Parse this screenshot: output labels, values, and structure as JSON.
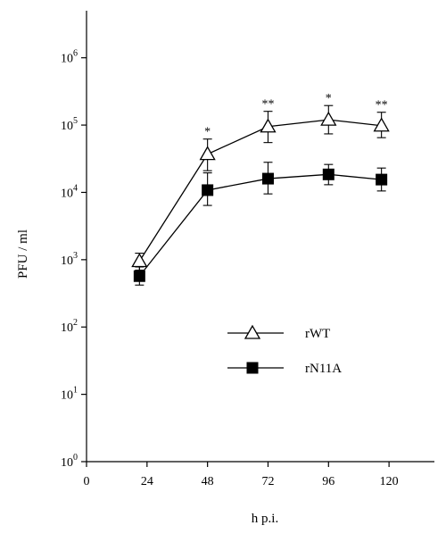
{
  "chart_data": {
    "type": "line",
    "xlabel": "h p.i.",
    "ylabel": "PFU / ml",
    "yscale": "log",
    "xlim": [
      0,
      138
    ],
    "ylim": [
      1,
      5000000
    ],
    "x_ticks": [
      0,
      24,
      48,
      72,
      96,
      120
    ],
    "y_ticks": [
      {
        "value": 1,
        "base": "10",
        "exp": "0"
      },
      {
        "value": 10,
        "base": "10",
        "exp": "1"
      },
      {
        "value": 100,
        "base": "10",
        "exp": "2"
      },
      {
        "value": 1000,
        "base": "10",
        "exp": "3"
      },
      {
        "value": 10000,
        "base": "10",
        "exp": "4"
      },
      {
        "value": 100000,
        "base": "10",
        "exp": "5"
      },
      {
        "value": 1000000,
        "base": "10",
        "exp": "6"
      }
    ],
    "grid": false,
    "legend_position": "center-right",
    "series": [
      {
        "name": "rWT",
        "marker": "open-triangle",
        "x": [
          21,
          48,
          72,
          96,
          117
        ],
        "y": [
          950,
          37000,
          95000,
          120000,
          98000
        ],
        "err_upper": [
          1250,
          62000,
          160000,
          195000,
          155000
        ],
        "err_lower": [
          700,
          21000,
          55000,
          74000,
          65000
        ],
        "significance": [
          "",
          "*",
          "**",
          "*",
          "**"
        ]
      },
      {
        "name": "rN11A",
        "marker": "filled-square",
        "x": [
          21,
          48,
          72,
          96,
          117
        ],
        "y": [
          570,
          10800,
          16000,
          18500,
          15500
        ],
        "err_upper": [
          780,
          19500,
          28000,
          26000,
          23000
        ],
        "err_lower": [
          420,
          6400,
          9500,
          13000,
          10500
        ],
        "significance": [
          "",
          "",
          "",
          "",
          ""
        ]
      }
    ]
  }
}
